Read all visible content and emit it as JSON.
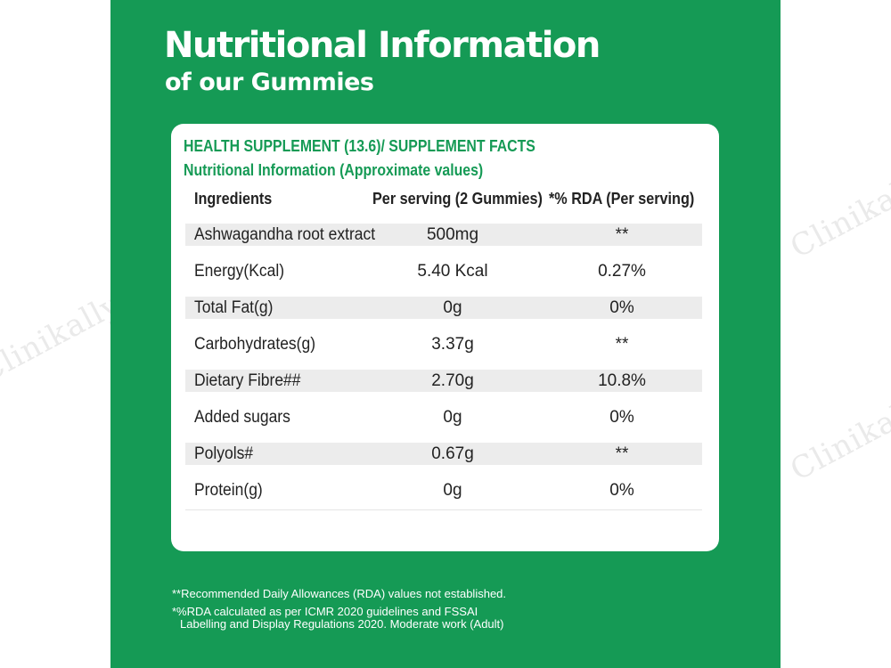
{
  "header": {
    "title": "Nutritional Information",
    "subtitle": "of our Gummies"
  },
  "watermark": "Clinikally",
  "card": {
    "heading1": "HEALTH SUPPLEMENT (13.6)/ SUPPLEMENT FACTS",
    "heading2": "Nutritional Information (Approximate values)",
    "columns": [
      "Ingredients",
      "Per serving (2 Gummies)",
      "*% RDA (Per serving)"
    ],
    "rows": [
      {
        "ingredient": "Ashwagandha root extract",
        "serving": "500mg",
        "rda": "**"
      },
      {
        "ingredient": "Energy(Kcal)",
        "serving": "5.40 Kcal",
        "rda": "0.27%"
      },
      {
        "ingredient": "Total Fat(g)",
        "serving": "0g",
        "rda": "0%"
      },
      {
        "ingredient": "Carbohydrates(g)",
        "serving": "3.37g",
        "rda": "**"
      },
      {
        "ingredient": "Dietary Fibre##",
        "serving": "2.70g",
        "rda": "10.8%"
      },
      {
        "ingredient": "Added sugars",
        "serving": "0g",
        "rda": "0%"
      },
      {
        "ingredient": "Polyols#",
        "serving": "0.67g",
        "rda": "**"
      },
      {
        "ingredient": "Protein(g)",
        "serving": "0g",
        "rda": "0%"
      }
    ]
  },
  "footnotes": {
    "line1": "**Recommended Daily Allowances (RDA) values not established.",
    "line2": "*%RDA calculated as per ICMR 2020 guidelines and FSSAI",
    "line3": "Labelling and Display Regulations 2020. Moderate work (Adult)"
  },
  "colors": {
    "brand_green": "#159a55",
    "row_shade": "#ececec",
    "text": "#222222"
  }
}
